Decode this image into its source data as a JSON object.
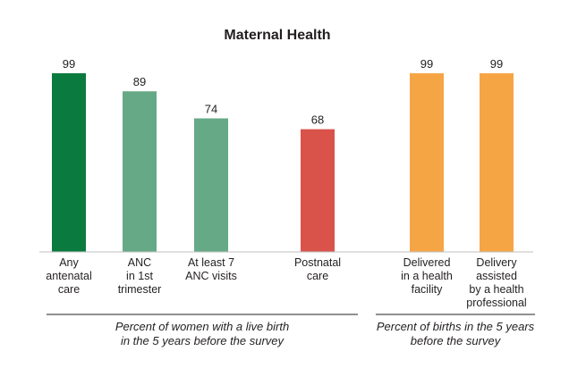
{
  "chart_data": {
    "type": "bar",
    "title": "Maternal Health",
    "xlabel": "",
    "ylabel": "",
    "ylim": [
      0,
      100
    ],
    "grid": false,
    "legend": "none",
    "unit": "percent",
    "categories": [
      "Any antenatal care",
      "ANC in 1st trimester",
      "At least 7 ANC visits",
      "Postnatal care",
      "Delivered in a health facility",
      "Delivery assisted by a health professional"
    ],
    "category_lines": [
      [
        "Any",
        "antenatal",
        "care"
      ],
      [
        "ANC",
        "in 1st",
        "trimester"
      ],
      [
        "At least 7",
        "ANC visits"
      ],
      [
        "Postnatal",
        "care"
      ],
      [
        "Delivered",
        "in a health",
        "facility"
      ],
      [
        "Delivery",
        "assisted",
        "by a health",
        "professional"
      ]
    ],
    "values": [
      99,
      89,
      74,
      68,
      99,
      99
    ],
    "value_labels": [
      "99",
      "89",
      "74",
      "68",
      "99",
      "99"
    ],
    "colors": [
      "#0b7a3e",
      "#66a987",
      "#66a987",
      "#d9534a",
      "#f6a545",
      "#f6a545"
    ],
    "groups": [
      {
        "label_lines": [
          "Percent of women with a live birth",
          "in the 5 years before the survey"
        ],
        "categories": [
          0,
          1,
          2,
          3
        ]
      },
      {
        "label_lines": [
          "Percent of births in the 5 years",
          "before the survey"
        ],
        "categories": [
          4,
          5
        ]
      }
    ]
  }
}
